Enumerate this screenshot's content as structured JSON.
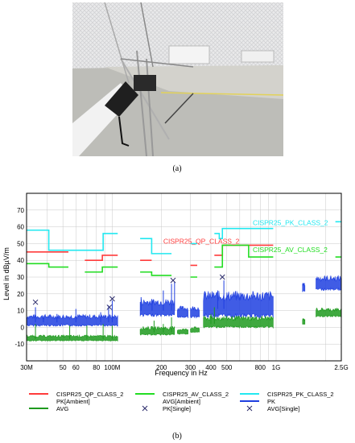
{
  "figure": {
    "caption_a": "(a)",
    "caption_b": "(b)"
  },
  "colors": {
    "qp": "#ff3b3b",
    "av_limit": "#22dd22",
    "pk_limit": "#22e8f0",
    "pk": "#1f3fe0",
    "avg": "#1e9a1e",
    "axis": "#000000",
    "grid": "#c8c8c8"
  },
  "chart_data": {
    "type": "line",
    "title": "",
    "xlabel": "Frequency in Hz",
    "ylabel": "Level in dBµV/m",
    "x_scale": "log",
    "xlim": [
      30000000,
      2500000000
    ],
    "ylim": [
      -20,
      80
    ],
    "grid": true,
    "x_ticks": [
      {
        "value": 30000000,
        "label": "30M"
      },
      {
        "value": 50000000,
        "label": "50"
      },
      {
        "value": 60000000,
        "label": "60"
      },
      {
        "value": 80000000,
        "label": "80"
      },
      {
        "value": 100000000,
        "label": "100M"
      },
      {
        "value": 200000000,
        "label": "200"
      },
      {
        "value": 300000000,
        "label": "300"
      },
      {
        "value": 400000000,
        "label": "400"
      },
      {
        "value": 500000000,
        "label": "500"
      },
      {
        "value": 800000000,
        "label": "800"
      },
      {
        "value": 1000000000,
        "label": "1G"
      },
      {
        "value": 2500000000,
        "label": "2.5G"
      }
    ],
    "y_ticks": [
      -10,
      0,
      10,
      20,
      30,
      40,
      50,
      60,
      70
    ],
    "limit_lines": [
      {
        "name": "CISPR25_PK_CLASS_2",
        "color": "#22e8f0",
        "segments": [
          [
            [
              30000000,
              58
            ],
            [
              41000000,
              58
            ]
          ],
          [
            [
              41000000,
              46
            ],
            [
              88000000,
              46
            ]
          ],
          [
            [
              88000000,
              56
            ],
            [
              108000000,
              56
            ]
          ],
          [
            [
              148000000,
              53
            ],
            [
              174000000,
              53
            ]
          ],
          [
            [
              174000000,
              44
            ],
            [
              230000000,
              44
            ]
          ],
          [
            [
              300000000,
              50
            ],
            [
              330000000,
              50
            ]
          ],
          [
            [
              420000000,
              56
            ],
            [
              450000000,
              56
            ]
          ],
          [
            [
              450000000,
              53
            ],
            [
              470000000,
              53
            ]
          ],
          [
            [
              470000000,
              59
            ],
            [
              960000000,
              59
            ]
          ],
          [
            [
              2300000000,
              63
            ],
            [
              2500000000,
              63
            ]
          ]
        ]
      },
      {
        "name": "CISPR25_QP_CLASS_2",
        "color": "#ff3b3b",
        "segments": [
          [
            [
              30000000,
              45
            ],
            [
              54000000,
              45
            ]
          ],
          [
            [
              68000000,
              40
            ],
            [
              87000000,
              40
            ]
          ],
          [
            [
              87000000,
              43
            ],
            [
              108000000,
              43
            ]
          ],
          [
            [
              148000000,
              40
            ],
            [
              174000000,
              40
            ]
          ],
          [
            [
              300000000,
              37
            ],
            [
              330000000,
              37
            ]
          ],
          [
            [
              420000000,
              43
            ],
            [
              470000000,
              43
            ]
          ],
          [
            [
              470000000,
              49
            ],
            [
              960000000,
              49
            ]
          ]
        ]
      },
      {
        "name": "CISPR25_AV_CLASS_2",
        "color": "#22dd22",
        "segments": [
          [
            [
              30000000,
              38
            ],
            [
              41000000,
              38
            ]
          ],
          [
            [
              41000000,
              36
            ],
            [
              54000000,
              36
            ]
          ],
          [
            [
              68000000,
              33
            ],
            [
              87000000,
              33
            ]
          ],
          [
            [
              87000000,
              36
            ],
            [
              108000000,
              36
            ]
          ],
          [
            [
              148000000,
              33
            ],
            [
              174000000,
              33
            ]
          ],
          [
            [
              174000000,
              31
            ],
            [
              230000000,
              31
            ]
          ],
          [
            [
              300000000,
              30
            ],
            [
              330000000,
              30
            ]
          ],
          [
            [
              420000000,
              36
            ],
            [
              470000000,
              36
            ]
          ],
          [
            [
              470000000,
              49
            ],
            [
              680000000,
              49
            ]
          ],
          [
            [
              680000000,
              42
            ],
            [
              960000000,
              42
            ]
          ],
          [
            [
              2300000000,
              42
            ],
            [
              2500000000,
              42
            ]
          ]
        ]
      }
    ],
    "limit_labels": [
      {
        "text": "CISPR25_PK_CLASS_2",
        "x": 720000000,
        "y": 61,
        "color": "#22e8f0"
      },
      {
        "text": "CISPR25_QP_CLASS_2",
        "x": 205000000,
        "y": 50,
        "color": "#ff3b3b"
      },
      {
        "text": "CISPR25_AV_CLASS_2",
        "x": 720000000,
        "y": 45,
        "color": "#22dd22"
      }
    ],
    "series": [
      {
        "name": "PK",
        "color": "#1f3fe0",
        "bands": [
          {
            "x0": 30000000,
            "x1": 108000000,
            "base": 3,
            "width": 4,
            "spikes": [
              [
                34000000,
                12
              ],
              [
                38000000,
                7
              ],
              [
                46000000,
                8
              ],
              [
                60000000,
                11
              ],
              [
                85000000,
                9
              ],
              [
                95000000,
                13
              ],
              [
                100000000,
                16
              ]
            ]
          },
          {
            "x0": 148000000,
            "x1": 240000000,
            "base": 10,
            "width": 6,
            "spikes": [
              [
                150000000,
                18
              ],
              [
                175000000,
                16
              ],
              [
                205000000,
                22
              ],
              [
                230000000,
                26
              ],
              [
                240000000,
                27
              ]
            ]
          },
          {
            "x0": 250000000,
            "x1": 290000000,
            "base": 8,
            "width": 4,
            "spikes": []
          },
          {
            "x0": 300000000,
            "x1": 340000000,
            "base": 8,
            "width": 4,
            "spikes": []
          },
          {
            "x0": 360000000,
            "x1": 960000000,
            "base": 11,
            "width": 9,
            "spikes": [
              [
                440000000,
                22
              ],
              [
                480000000,
                28
              ]
            ]
          },
          {
            "x0": 1450000000,
            "x1": 1500000000,
            "base": 23,
            "width": 3,
            "spikes": []
          },
          {
            "x0": 1750000000,
            "x1": 2500000000,
            "base": 25,
            "width": 5,
            "spikes": []
          }
        ]
      },
      {
        "name": "AVG",
        "color": "#1e9a1e",
        "bands": [
          {
            "x0": 30000000,
            "x1": 108000000,
            "base": -7,
            "width": 2,
            "spikes": [
              [
                34000000,
                2
              ],
              [
                55000000,
                1
              ],
              [
                70000000,
                1
              ],
              [
                88000000,
                2
              ],
              [
                100000000,
                1
              ]
            ]
          },
          {
            "x0": 148000000,
            "x1": 240000000,
            "base": -3,
            "width": 3,
            "spikes": [
              [
                180000000,
                4
              ],
              [
                205000000,
                2
              ],
              [
                230000000,
                6
              ]
            ]
          },
          {
            "x0": 250000000,
            "x1": 290000000,
            "base": -3,
            "width": 2,
            "spikes": []
          },
          {
            "x0": 300000000,
            "x1": 340000000,
            "base": -2,
            "width": 2,
            "spikes": []
          },
          {
            "x0": 360000000,
            "x1": 960000000,
            "base": 2,
            "width": 4,
            "spikes": [
              [
                400000000,
                8
              ],
              [
                420000000,
                12
              ]
            ]
          },
          {
            "x0": 1450000000,
            "x1": 1500000000,
            "base": 3,
            "width": 2,
            "spikes": []
          },
          {
            "x0": 1750000000,
            "x1": 2500000000,
            "base": 8,
            "width": 3,
            "spikes": []
          }
        ]
      }
    ],
    "markers": [
      {
        "series": "PK[Single]",
        "x": 34000000,
        "y": 15
      },
      {
        "series": "PK[Single]",
        "x": 96000000,
        "y": 12
      },
      {
        "series": "PK[Single]",
        "x": 235000000,
        "y": 28
      },
      {
        "series": "PK[Single]",
        "x": 470000000,
        "y": 30
      },
      {
        "series": "AVG[Single]",
        "x": 100000000,
        "y": 17
      }
    ],
    "legend": [
      {
        "label": "CISPR25_QP_CLASS_2",
        "color": "#ff3b3b",
        "kind": "line"
      },
      {
        "label": "CISPR25_AV_CLASS_2",
        "color": "#22dd22",
        "kind": "line"
      },
      {
        "label": "CISPR25_PK_CLASS_2",
        "color": "#22e8f0",
        "kind": "line"
      },
      {
        "label": "PK[Ambient]",
        "color": "#1f3fe0",
        "kind": "none"
      },
      {
        "label": "AVG[Ambient]",
        "color": "#1e9a1e",
        "kind": "none"
      },
      {
        "label": "PK",
        "color": "#1f3fe0",
        "kind": "line"
      },
      {
        "label": "AVG",
        "color": "#1e9a1e",
        "kind": "line"
      },
      {
        "label": "PK[Single]",
        "color": "#1f3fe0",
        "kind": "cross"
      },
      {
        "label": "AVG[Single]",
        "color": "#1f3fe0",
        "kind": "cross"
      }
    ]
  }
}
